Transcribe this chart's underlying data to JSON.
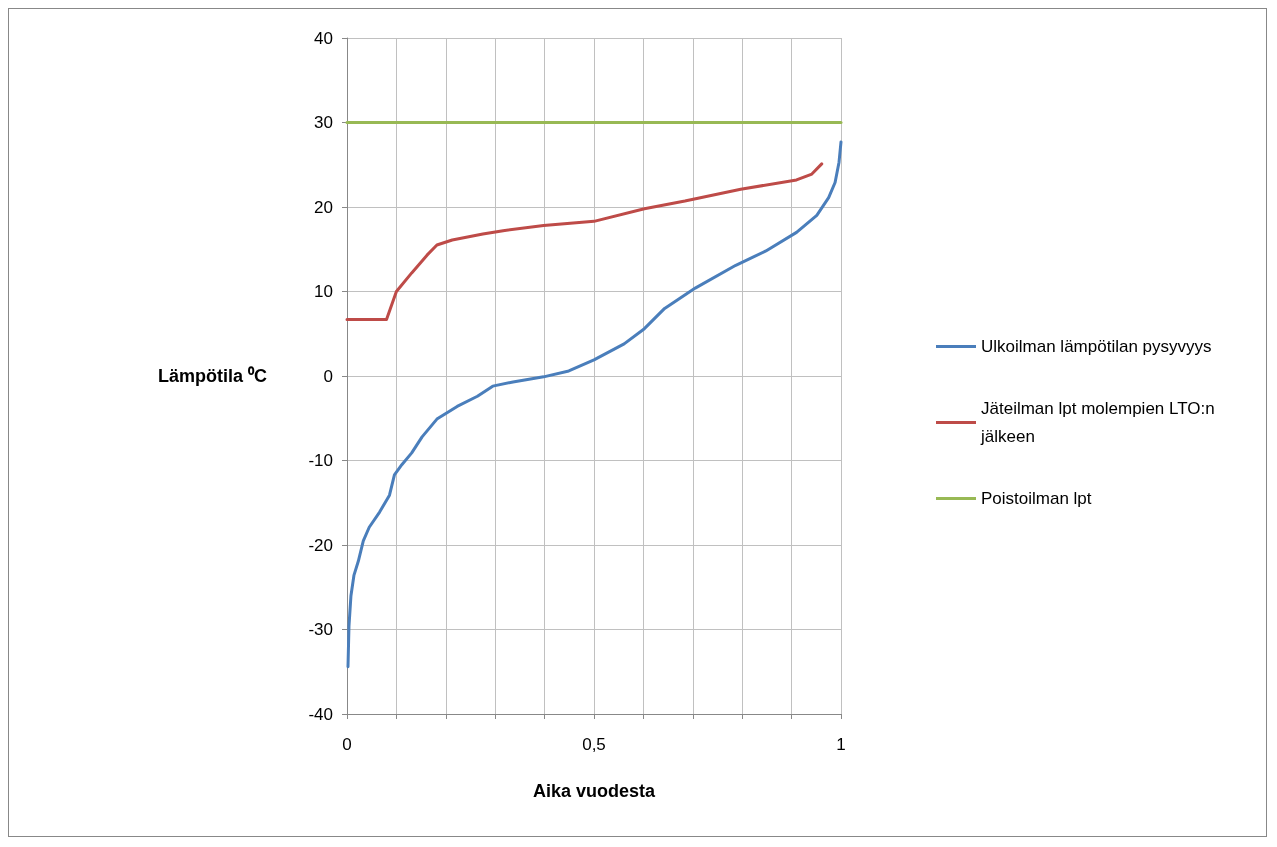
{
  "chart_data": {
    "type": "line",
    "xlabel": "Aika vuodesta",
    "ylabel": "Lämpötila ⁰C",
    "xlim": [
      0,
      1
    ],
    "xticks": [
      0,
      {
        "value": 0.1,
        "label": null
      },
      {
        "value": 0.2,
        "label": null
      },
      {
        "value": 0.3,
        "label": null
      },
      {
        "value": 0.4,
        "label": null
      },
      {
        "value": 0.5,
        "label": "0,5"
      },
      {
        "value": 0.6,
        "label": null
      },
      {
        "value": 0.7,
        "label": null
      },
      {
        "value": 0.8,
        "label": null
      },
      {
        "value": 0.9,
        "label": null
      },
      1
    ],
    "ylim": [
      -40,
      40
    ],
    "yticks": [
      -40,
      -30,
      -20,
      -10,
      0,
      10,
      20,
      30,
      40
    ],
    "grid": true,
    "legend": "right",
    "marker": "none",
    "line_style": "solid",
    "series": [
      {
        "name": "Ulkoilman lämpötilan pysyvyys",
        "color": "#4a7ebb",
        "x": [
          0.002,
          0.004,
          0.008,
          0.014,
          0.023,
          0.033,
          0.045,
          0.066,
          0.086,
          0.096,
          0.111,
          0.131,
          0.152,
          0.182,
          0.223,
          0.264,
          0.295,
          0.336,
          0.398,
          0.449,
          0.5,
          0.561,
          0.602,
          0.643,
          0.705,
          0.787,
          0.848,
          0.91,
          0.951,
          0.975,
          0.988,
          0.996,
          1
        ],
        "values": [
          -34.4,
          -29.6,
          -26,
          -23.6,
          -21.9,
          -19.5,
          -17.9,
          -16.1,
          -14.1,
          -11.7,
          -10.5,
          -9.1,
          -7.2,
          -5.1,
          -3.6,
          -2.4,
          -1.2,
          -0.7,
          -0.1,
          0.6,
          1.9,
          3.8,
          5.6,
          8,
          10.4,
          13.1,
          14.8,
          17,
          19,
          21.1,
          22.9,
          25.3,
          27.7
        ]
      },
      {
        "name": "Jäteilman lpt molempien LTO:n jälkeen",
        "color": "#be4b48",
        "x": [
          0,
          0.08,
          0.1,
          0.131,
          0.162,
          0.182,
          0.213,
          0.275,
          0.316,
          0.398,
          0.5,
          0.602,
          0.684,
          0.797,
          0.91,
          0.941,
          0.961
        ],
        "values": [
          6.7,
          6.7,
          10,
          12.2,
          14.3,
          15.5,
          16.1,
          16.8,
          17.2,
          17.8,
          18.3,
          19.8,
          20.7,
          22.1,
          23.2,
          23.9,
          25.1
        ]
      },
      {
        "name": "Poistoilman lpt",
        "color": "#98b954",
        "x": [
          0,
          1
        ],
        "values": [
          30,
          30
        ]
      }
    ]
  }
}
